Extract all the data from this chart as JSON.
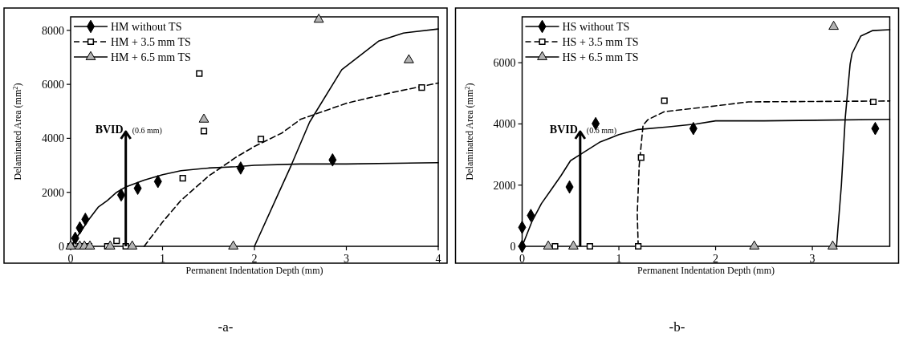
{
  "chart_data": [
    {
      "type": "scatter",
      "xlabel": "Permanent Indentation Depth (mm)",
      "ylabel": "Delaminated Area (mm$^{2}$)",
      "xlim": [
        0,
        4
      ],
      "ylim": [
        0,
        8500
      ],
      "xticks": [
        0,
        1,
        2,
        3,
        4
      ],
      "yticks": [
        0,
        2000,
        4000,
        6000,
        8000
      ],
      "legend": "top left",
      "annotations": [
        "-a-"
      ],
      "ref_lines": [
        {
          "axis": "x",
          "value": 0.6,
          "label": "BVID (0.6 mm)"
        }
      ],
      "series": [
        {
          "name": "HM without TS",
          "marker": "diamond",
          "color": "#000000",
          "x": [
            0.05,
            0.1,
            0.16,
            0.55,
            0.73,
            0.95,
            1.85,
            2.85
          ],
          "values": [
            300,
            680,
            1000,
            1900,
            2150,
            2400,
            2900,
            3200
          ]
        },
        {
          "name": "HM + 3.5 mm TS",
          "marker": "square",
          "color": "#000000",
          "x": [
            0,
            0.1,
            0.2,
            0.4,
            0.5,
            0.6,
            1.22,
            1.4,
            1.45,
            2.07,
            3.82
          ],
          "values": [
            0,
            0,
            0,
            0,
            200,
            0,
            2520,
            6400,
            4270,
            3970,
            5880
          ]
        },
        {
          "name": "HM + 6.5 mm TS",
          "marker": "triangle",
          "color": "#b3b3b3",
          "x": [
            0,
            0.1,
            0.15,
            0.21,
            0.43,
            0.67,
            1.77,
            1.45,
            2.7,
            3.68
          ],
          "values": [
            0,
            0,
            0,
            0,
            0,
            0,
            0,
            4700,
            8400,
            6900
          ]
        },
        {
          "type": "line",
          "line_style": "solid",
          "color": "#000000",
          "x": [
            0,
            0.1,
            0.2,
            0.3,
            0.4,
            0.5,
            0.6,
            0.8,
            1.0,
            1.2,
            1.5,
            1.8,
            2.0,
            2.5,
            3,
            4
          ],
          "values": [
            0,
            500,
            1000,
            1450,
            1700,
            2000,
            2200,
            2450,
            2650,
            2800,
            2900,
            2950,
            3000,
            3050,
            3050,
            3100
          ]
        },
        {
          "type": "line",
          "line_style": "dashed",
          "color": "#000000",
          "x": [
            0.8,
            1.0,
            1.2,
            1.5,
            1.8,
            2.0,
            2.3,
            2.5,
            3,
            3.5,
            4
          ],
          "values": [
            0,
            900,
            1700,
            2600,
            3300,
            3700,
            4200,
            4700,
            5300,
            5700,
            6050
          ]
        },
        {
          "type": "line",
          "line_style": "solid",
          "color": "#000000",
          "x": [
            2.0,
            2.26,
            2.4,
            2.6,
            2.95,
            3.35,
            3.62,
            4
          ],
          "values": [
            0,
            1950,
            3000,
            4600,
            6540,
            7600,
            7900,
            8050
          ]
        }
      ]
    },
    {
      "type": "scatter",
      "xlabel": "Permanent Indentation Depth (mm)",
      "ylabel": "Delaminated Area (mm$^{2}$)",
      "xlim": [
        0,
        3.8
      ],
      "ylim": [
        0,
        7500
      ],
      "xticks": [
        0,
        1,
        2,
        3
      ],
      "yticks": [
        0,
        2000,
        4000,
        6000
      ],
      "legend": "top left",
      "annotations": [
        "-b-"
      ],
      "ref_lines": [
        {
          "axis": "x",
          "value": 0.6,
          "label": "BVID (0.6 mm)"
        }
      ],
      "series": [
        {
          "name": "HS without TS",
          "marker": "diamond",
          "color": "#000000",
          "x": [
            0,
            0,
            0.09,
            0.49,
            0.76,
            1.77,
            3.65
          ],
          "values": [
            0,
            620,
            1010,
            1940,
            4010,
            3850,
            3850
          ]
        },
        {
          "name": "HS + 3.5 mm TS",
          "marker": "square",
          "color": "#000000",
          "x": [
            0.34,
            0.7,
            1.2,
            1.23,
            1.47,
            3.63
          ],
          "values": [
            0,
            0,
            0,
            2900,
            4760,
            4720
          ]
        },
        {
          "name": "HS + 6.5 mm TS",
          "marker": "triangle",
          "color": "#b3b3b3",
          "x": [
            0.27,
            0.53,
            2.4,
            3.21,
            3.22
          ],
          "values": [
            0,
            0,
            0,
            0,
            7180
          ]
        },
        {
          "type": "line",
          "line_style": "solid",
          "color": "#000000",
          "x": [
            0,
            0.1,
            0.2,
            0.3,
            0.4,
            0.5,
            0.6,
            0.8,
            1.0,
            1.2,
            1.5,
            1.8,
            2.0,
            2.5,
            3.8
          ],
          "values": [
            0,
            800,
            1400,
            1850,
            2300,
            2800,
            3000,
            3400,
            3650,
            3820,
            3900,
            4000,
            4100,
            4100,
            4150
          ]
        },
        {
          "type": "line",
          "line_style": "dashed",
          "color": "#000000",
          "x": [
            1.2,
            1.19,
            1.21,
            1.25,
            1.3,
            1.47,
            2.0,
            2.34,
            3.8
          ],
          "values": [
            0,
            1060,
            2640,
            3960,
            4140,
            4400,
            4590,
            4720,
            4750
          ]
        },
        {
          "type": "line",
          "line_style": "solid",
          "color": "#000000",
          "x": [
            3.25,
            3.3,
            3.34,
            3.39,
            3.41,
            3.5,
            3.62,
            3.8
          ],
          "values": [
            0,
            2000,
            4200,
            5950,
            6300,
            6870,
            7050,
            7080
          ]
        }
      ]
    }
  ]
}
